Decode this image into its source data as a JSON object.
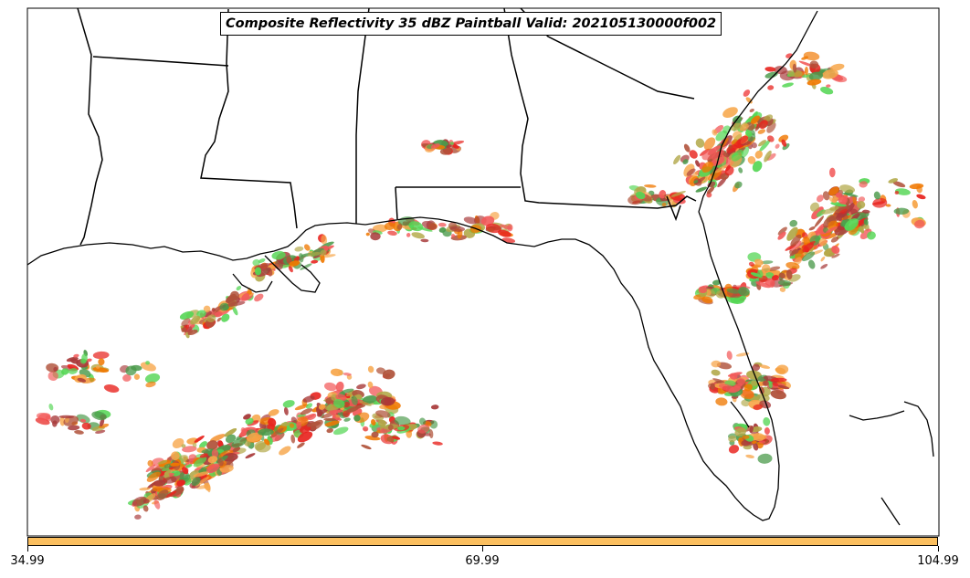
{
  "title": "Composite Reflectivity 35 dBZ Paintball Valid: 202105130000f002",
  "colors": {
    "land_border": "#000000",
    "background": "#ffffff",
    "colorbar_fill": "#fbbf5f",
    "paint": [
      "#f07800",
      "#e8241f",
      "#f25a5a",
      "#55d655",
      "#4a9a4a",
      "#b0523a",
      "#b2a848",
      "#f7a64a",
      "#a83a3a"
    ]
  },
  "legend": {
    "colorbar": {
      "ticks": [
        {
          "label": "34.99",
          "value": 34.99
        },
        {
          "label": "69.99",
          "value": 69.99
        },
        {
          "label": "104.99",
          "value": 104.99
        }
      ],
      "range": [
        34.99,
        104.99
      ]
    }
  },
  "map_features": [
    "state-borders",
    "coastline",
    "storm-cells"
  ]
}
